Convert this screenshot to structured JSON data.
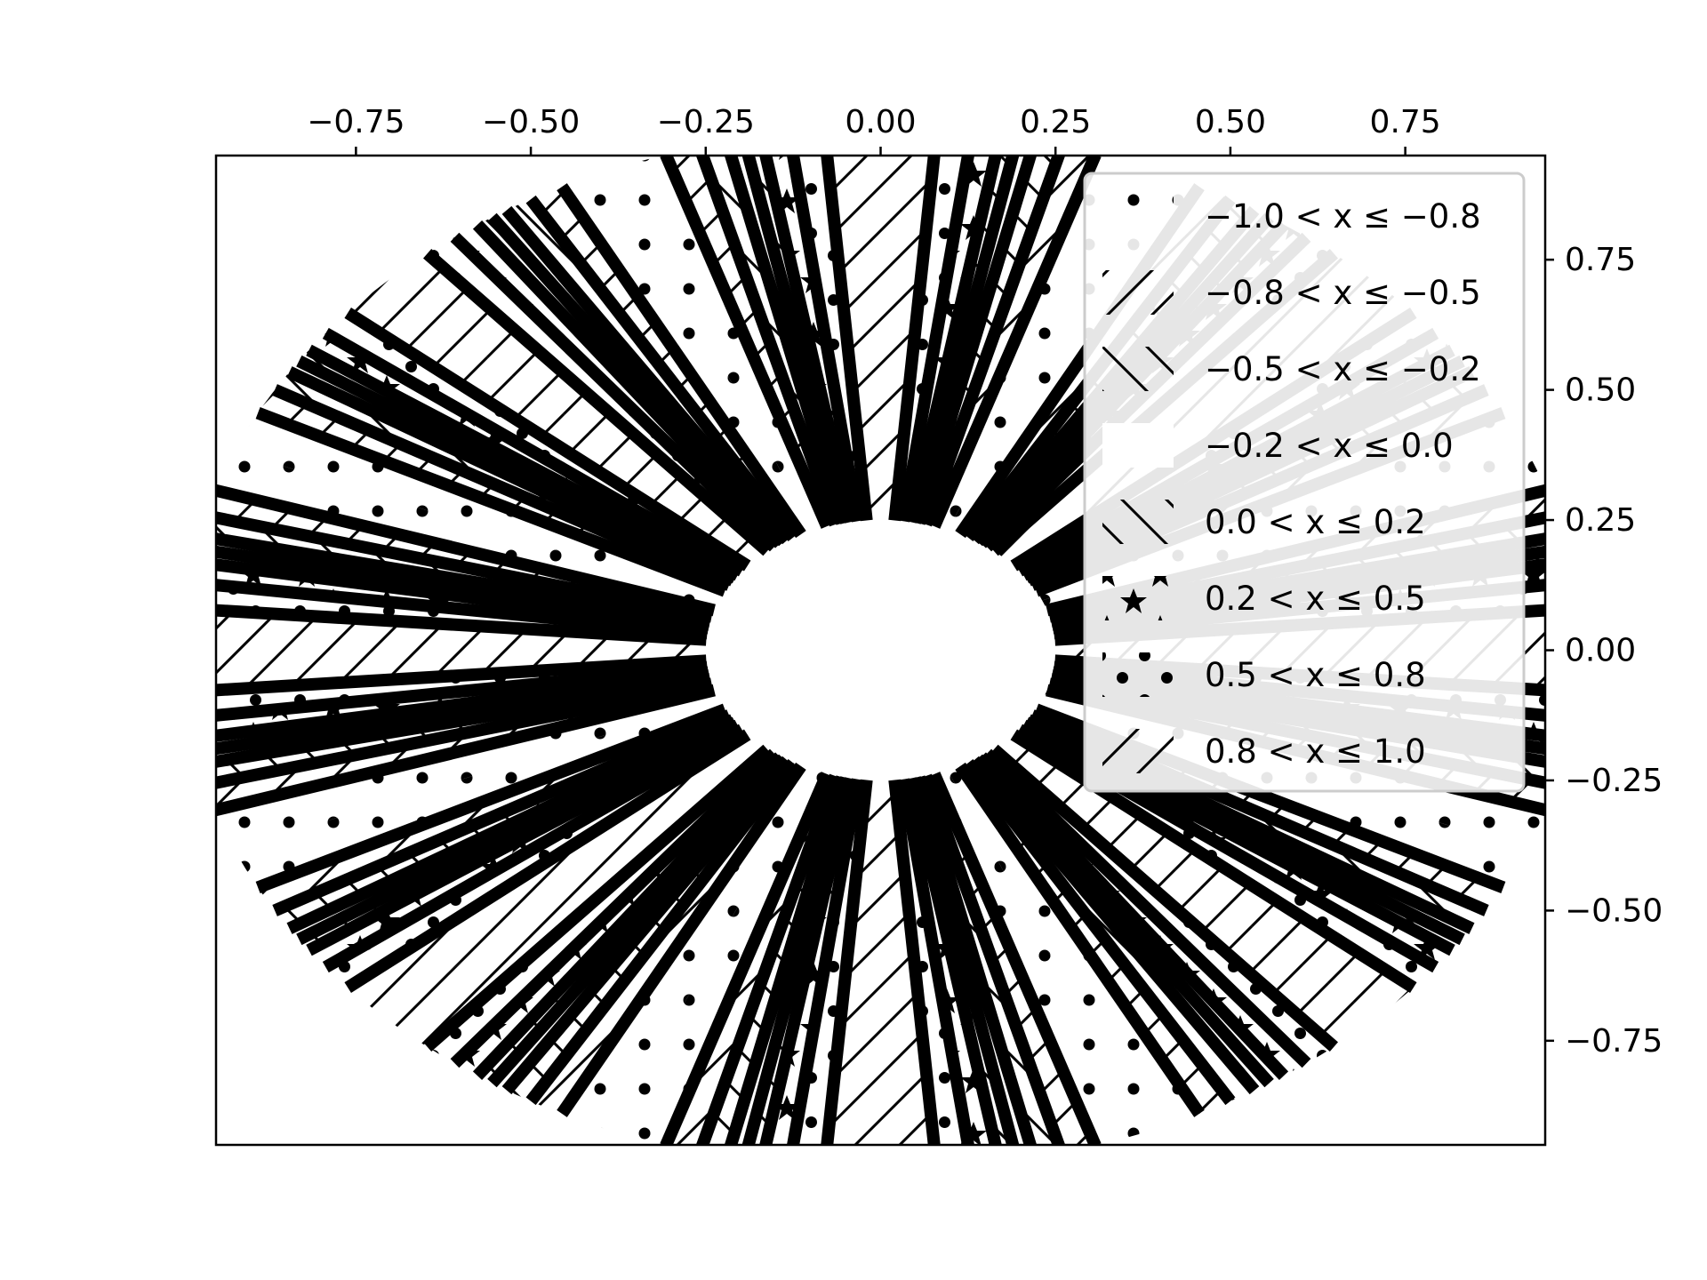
{
  "chart_data": {
    "type": "contour",
    "function": "z = cos(8 * atan2(y, x))",
    "domain": "annulus 0.25 <= r <= 1.0",
    "x_ticks": [
      {
        "value": -0.75,
        "label": "−0.75"
      },
      {
        "value": -0.5,
        "label": "−0.50"
      },
      {
        "value": -0.25,
        "label": "−0.25"
      },
      {
        "value": 0.0,
        "label": "0.00"
      },
      {
        "value": 0.25,
        "label": "0.25"
      },
      {
        "value": 0.5,
        "label": "0.50"
      },
      {
        "value": 0.75,
        "label": "0.75"
      }
    ],
    "y_ticks": [
      {
        "value": 0.75,
        "label": "0.75"
      },
      {
        "value": 0.5,
        "label": "0.50"
      },
      {
        "value": 0.25,
        "label": "0.25"
      },
      {
        "value": 0.0,
        "label": "0.00"
      },
      {
        "value": -0.25,
        "label": "−0.25"
      },
      {
        "value": -0.5,
        "label": "−0.50"
      },
      {
        "value": -0.75,
        "label": "−0.75"
      }
    ],
    "xlim": [
      -0.95,
      0.95
    ],
    "ylim": [
      -0.95,
      0.95
    ],
    "x_axis_position": "top",
    "y_axis_position": "right",
    "grid": false,
    "levels": [
      -1.0,
      -0.8,
      -0.5,
      -0.2,
      0.0,
      0.2,
      0.5,
      0.8,
      1.0
    ],
    "legend": {
      "placement": "top-right",
      "entries": [
        {
          "label": "−1.0 < x ≤ −0.8",
          "hatch": "dots-sparse",
          "range": [
            -1.0,
            -0.8
          ]
        },
        {
          "label": "−0.8 < x ≤ −0.5",
          "hatch": "forward-slash",
          "range": [
            -0.8,
            -0.5
          ]
        },
        {
          "label": "−0.5 < x ≤ −0.2",
          "hatch": "back-slash",
          "range": [
            -0.5,
            -0.2
          ]
        },
        {
          "label": "−0.2 < x ≤ 0.0",
          "hatch": "none",
          "range": [
            -0.2,
            0.0
          ]
        },
        {
          "label": "0.0 < x ≤ 0.2",
          "hatch": "back-slash",
          "range": [
            0.0,
            0.2
          ]
        },
        {
          "label": "0.2 < x ≤ 0.5",
          "hatch": "stars",
          "range": [
            0.2,
            0.5
          ]
        },
        {
          "label": "0.5 < x ≤ 0.8",
          "hatch": "dots",
          "range": [
            0.5,
            0.8
          ]
        },
        {
          "label": "0.8 < x ≤ 1.0",
          "hatch": "forward-slash",
          "range": [
            0.8,
            1.0
          ]
        }
      ]
    },
    "colors": {
      "ink": "#000000",
      "background": "#ffffff",
      "legend_border": "#cccccc"
    }
  }
}
